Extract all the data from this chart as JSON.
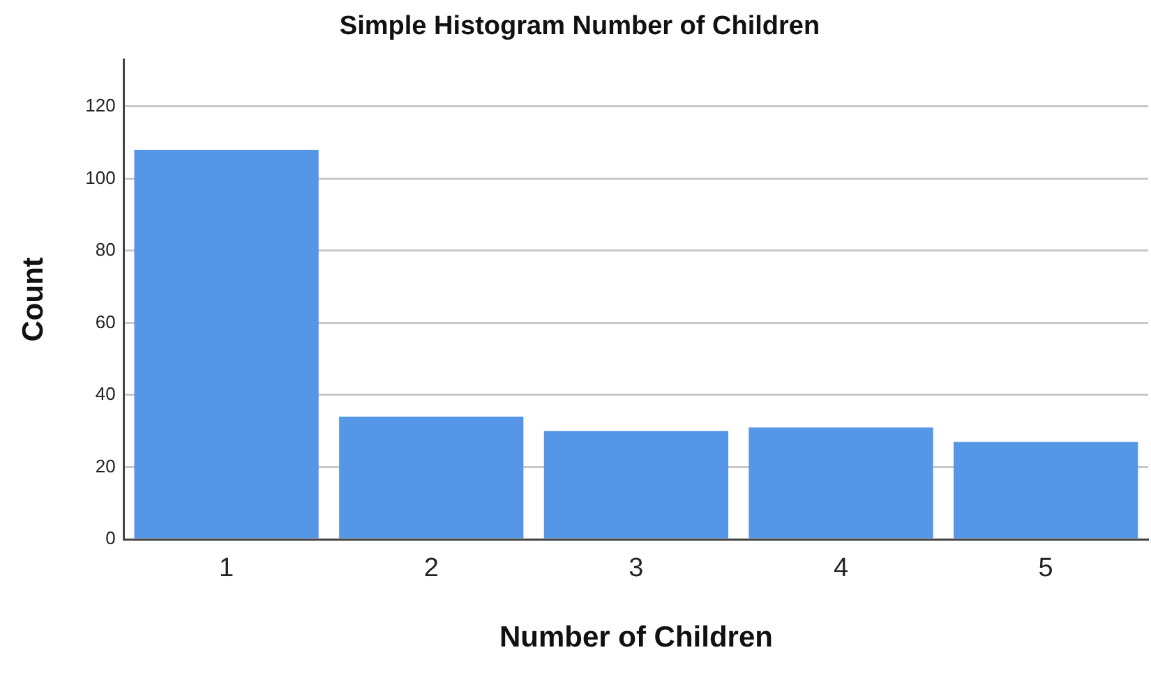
{
  "chart_data": {
    "type": "bar",
    "title": "Simple Histogram Number of Children",
    "xlabel": "Number of Children",
    "ylabel": "Count",
    "categories": [
      "1",
      "2",
      "3",
      "4",
      "5"
    ],
    "values": [
      108,
      34,
      30,
      31,
      27
    ],
    "color": "#5596e6",
    "ylim": [
      0,
      133
    ],
    "yticks": [
      0,
      20,
      40,
      60,
      80,
      100,
      120
    ],
    "grid": "y"
  }
}
